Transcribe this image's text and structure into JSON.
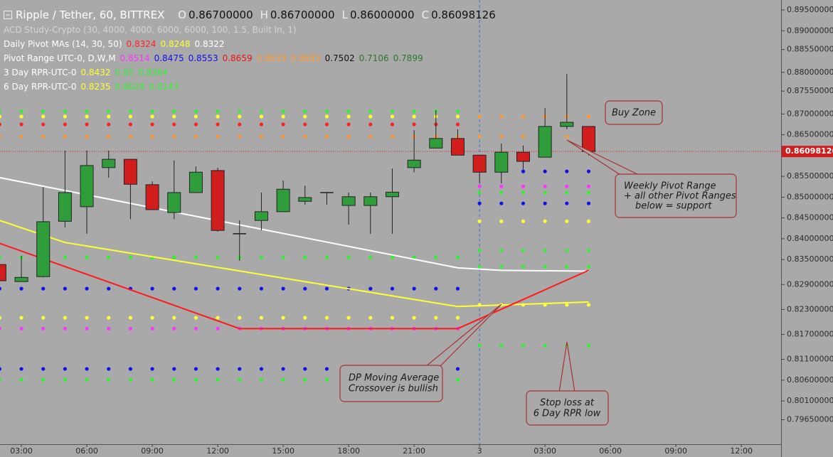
{
  "chart_data": {
    "type": "candlestick",
    "title": "Ripple / Tether, 60, BITTREX",
    "ohlc_header": [
      {
        "key": "O",
        "text": "0.86700000"
      },
      {
        "key": "H",
        "text": "0.86700000"
      },
      {
        "key": "L",
        "text": "0.86000000"
      },
      {
        "key": "C",
        "text": "0.86098126"
      }
    ],
    "studies": [
      {
        "label": "ACD Study-Crypto (30, 4000, 4000, 6000, 6000, 100, 1.5, Built In, 1)",
        "color": "#d4d4d4"
      },
      {
        "label": "Daily Pivot MAs (14, 30, 50)",
        "color": "#ffffff",
        "values": [
          0.8324,
          0.8248,
          0.8322
        ],
        "colors": [
          "#ff2020",
          "#ffff33",
          "#ffffff"
        ]
      },
      {
        "label": "Pivot Range UTC-0, D,W,M",
        "color": "#ffffff",
        "values": [
          0.8514,
          0.8475,
          0.8553,
          0.8659,
          0.8639,
          0.8683,
          0.7502,
          0.7106,
          0.7899
        ],
        "colors": [
          "#ff33ff",
          "#1010ee",
          "#1010ee",
          "#ee1010",
          "#ff9933",
          "#ff9933",
          "#111111",
          "#2a7a2a",
          "#2a7a2a"
        ]
      },
      {
        "label": "3 Day RPR-UTC-0",
        "color": "#ffffff",
        "values": [
          0.8432,
          0.85,
          0.8364
        ],
        "colors": [
          "#ffff33",
          "#33ee33",
          "#33ee33"
        ]
      },
      {
        "label": "6 Day RPR-UTC-0",
        "color": "#ffffff",
        "values": [
          0.8235,
          0.8028,
          0.8143
        ],
        "colors": [
          "#ffff33",
          "#33ee33",
          "#33ee33"
        ]
      }
    ],
    "x": [
      2,
      3,
      4,
      5,
      6,
      7,
      8,
      9,
      10,
      11,
      12,
      13,
      14,
      15,
      16,
      17,
      18,
      19,
      20,
      21,
      22,
      23,
      24,
      25,
      26,
      27,
      28,
      29
    ],
    "open": [
      0.8338,
      0.8297,
      0.8309,
      0.8442,
      0.8477,
      0.8571,
      0.8591,
      0.853,
      0.8463,
      0.8511,
      0.8564,
      0.8412,
      0.8444,
      0.8465,
      0.849,
      0.8511,
      0.848,
      0.848,
      0.8501,
      0.8571,
      0.8618,
      0.8641,
      0.8601,
      0.856,
      0.8608,
      0.8596,
      0.867,
      0.867
    ],
    "high": [
      0.8338,
      0.8359,
      0.8524,
      0.8612,
      0.8612,
      0.8612,
      0.8591,
      0.8538,
      0.8588,
      0.8574,
      0.8571,
      0.8444,
      0.8511,
      0.854,
      0.8528,
      0.8511,
      0.8511,
      0.8511,
      0.8569,
      0.8661,
      0.8709,
      0.8663,
      0.8601,
      0.8629,
      0.8624,
      0.8714,
      0.8796,
      0.867
    ],
    "low": [
      0.8299,
      0.8297,
      0.8307,
      0.8427,
      0.8412,
      0.8547,
      0.8447,
      0.847,
      0.8447,
      0.8511,
      0.8417,
      0.8347,
      0.842,
      0.8465,
      0.8482,
      0.8482,
      0.8434,
      0.8412,
      0.8412,
      0.856,
      0.8618,
      0.8601,
      0.8533,
      0.8533,
      0.8567,
      0.8596,
      0.8663,
      0.86
    ],
    "close": [
      0.8299,
      0.8307,
      0.8441,
      0.8511,
      0.8576,
      0.8591,
      0.8531,
      0.847,
      0.8511,
      0.856,
      0.842,
      0.8412,
      0.8465,
      0.8519,
      0.8499,
      0.8511,
      0.8501,
      0.8501,
      0.8512,
      0.8589,
      0.8641,
      0.8601,
      0.856,
      0.8608,
      0.8586,
      0.867,
      0.868,
      0.86098126
    ],
    "up_color": "#2f9d3a",
    "down_color": "#d21d1d",
    "flat_color": "#222222",
    "lines": [
      {
        "color": "#ffffff",
        "x": [
          2,
          23,
          25,
          29
        ],
        "values": [
          0.8547,
          0.833,
          0.8324,
          0.8322
        ]
      },
      {
        "color": "#ffff33",
        "x": [
          2,
          5,
          23,
          29
        ],
        "values": [
          0.8444,
          0.8391,
          0.8237,
          0.8248
        ]
      },
      {
        "color": "#ff1a1a",
        "x": [
          2,
          13,
          23,
          29
        ],
        "values": [
          0.8389,
          0.8184,
          0.8184,
          0.8324
        ]
      }
    ],
    "pivots": [
      {
        "color": "#33ee33",
        "value": 0.8706,
        "from": 2,
        "to": 23
      },
      {
        "color": "#ffff33",
        "value": 0.8694,
        "from": 2,
        "to": 23
      },
      {
        "color": "#ff2020",
        "value": 0.8675,
        "from": 2,
        "to": 23
      },
      {
        "color": "#ff9933",
        "value": 0.8646,
        "from": 2,
        "to": 23
      },
      {
        "color": "#33ee33",
        "value": 0.8355,
        "from": 2,
        "to": 23
      },
      {
        "color": "#1010ee",
        "value": 0.828,
        "from": 2,
        "to": 23
      },
      {
        "color": "#ffff33",
        "value": 0.821,
        "from": 2,
        "to": 23
      },
      {
        "color": "#ff33ff",
        "value": 0.8184,
        "from": 2,
        "to": 23
      },
      {
        "color": "#1010ee",
        "value": 0.8087,
        "from": 2,
        "to": 23
      },
      {
        "color": "#33ee33",
        "value": 0.8061,
        "from": 2,
        "to": 23
      },
      {
        "color": "#ff9933",
        "value": 0.8694,
        "from": 24,
        "to": 29
      },
      {
        "color": "#ff9933",
        "value": 0.8646,
        "from": 24,
        "to": 29
      },
      {
        "color": "#1010ee",
        "value": 0.8562,
        "from": 26,
        "to": 29
      },
      {
        "color": "#ff33ff",
        "value": 0.8526,
        "from": 24,
        "to": 29
      },
      {
        "color": "#33ee33",
        "value": 0.8511,
        "from": 24,
        "to": 29
      },
      {
        "color": "#1010ee",
        "value": 0.8485,
        "from": 24,
        "to": 29
      },
      {
        "color": "#ffff33",
        "value": 0.8442,
        "from": 24,
        "to": 29
      },
      {
        "color": "#33ee33",
        "value": 0.8372,
        "from": 24,
        "to": 29
      },
      {
        "color": "#33ee33",
        "value": 0.8333,
        "from": 24,
        "to": 29
      },
      {
        "color": "#ffff33",
        "value": 0.8241,
        "from": 24,
        "to": 29
      },
      {
        "color": "#33ee33",
        "value": 0.8143,
        "from": 24,
        "to": 29
      }
    ],
    "xlim": [
      2.02,
      37.82
    ],
    "ylim": [
      0.7906,
      0.8974
    ],
    "xticks": [
      {
        "value": 3,
        "label": "03:00"
      },
      {
        "value": 6,
        "label": "06:00"
      },
      {
        "value": 9,
        "label": "09:00"
      },
      {
        "value": 12,
        "label": "12:00"
      },
      {
        "value": 15,
        "label": "15:00"
      },
      {
        "value": 18,
        "label": "18:00"
      },
      {
        "value": 21,
        "label": "21:00"
      },
      {
        "value": 24,
        "label": "3"
      },
      {
        "value": 27,
        "label": "03:00"
      },
      {
        "value": 30,
        "label": "06:00"
      },
      {
        "value": 33,
        "label": "09:00"
      },
      {
        "value": 36,
        "label": "12:00"
      }
    ],
    "yticks": [
      {
        "value": 0.895,
        "label": "0.89500000"
      },
      {
        "value": 0.89,
        "label": "0.89000000"
      },
      {
        "value": 0.8855,
        "label": "0.88550000"
      },
      {
        "value": 0.88,
        "label": "0.88000000"
      },
      {
        "value": 0.8755,
        "label": "0.87550000"
      },
      {
        "value": 0.87,
        "label": "0.87000000"
      },
      {
        "value": 0.865,
        "label": "0.86500000"
      },
      {
        "value": 0.855,
        "label": "0.85500000"
      },
      {
        "value": 0.85,
        "label": "0.85000000"
      },
      {
        "value": 0.845,
        "label": "0.84500000"
      },
      {
        "value": 0.84,
        "label": "0.84000000"
      },
      {
        "value": 0.835,
        "label": "0.83500000"
      },
      {
        "value": 0.829,
        "label": "0.82900000"
      },
      {
        "value": 0.823,
        "label": "0.82300000"
      },
      {
        "value": 0.817,
        "label": "0.81700000"
      },
      {
        "value": 0.811,
        "label": "0.81100000"
      },
      {
        "value": 0.806,
        "label": "0.80600000"
      },
      {
        "value": 0.801,
        "label": "0.80100000"
      },
      {
        "value": 0.7965,
        "label": "0.79650000"
      }
    ],
    "annotations": [
      {
        "lines": [
          "Buy Zone"
        ]
      },
      {
        "lines": [
          "Weekly Pivot Range",
          "+ all other Pivot Ranges",
          "below = support"
        ]
      },
      {
        "lines": [
          "DP Moving Average",
          "Crossover is bullish"
        ]
      },
      {
        "lines": [
          "Stop loss at",
          "6 Day RPR low"
        ]
      }
    ]
  }
}
